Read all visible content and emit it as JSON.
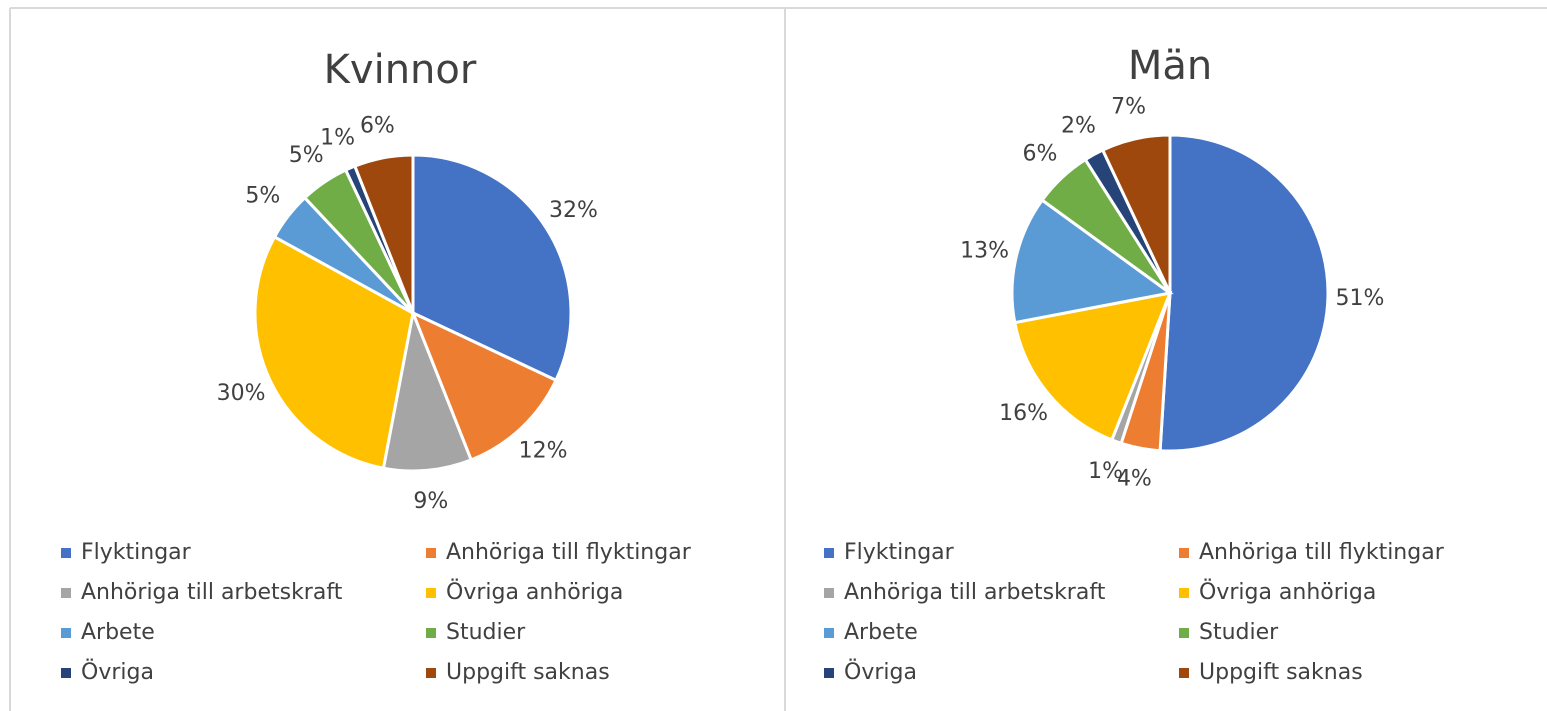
{
  "chart_data": [
    {
      "type": "pie",
      "title": "Kvinnor",
      "categories": [
        "Flyktingar",
        "Anhöriga till flyktingar",
        "Anhöriga till arbetskraft",
        "Övriga anhöriga",
        "Arbete",
        "Studier",
        "Övriga",
        "Uppgift saknas"
      ],
      "values": [
        32,
        12,
        9,
        30,
        5,
        5,
        1,
        6
      ],
      "value_labels": [
        "32%",
        "12%",
        "9%",
        "30%",
        "5%",
        "5%",
        "1%",
        "6%"
      ],
      "colors": [
        "#4472c4",
        "#ed7d31",
        "#a5a5a5",
        "#ffc000",
        "#5b9bd5",
        "#70ad47",
        "#264478",
        "#9e480e"
      ]
    },
    {
      "type": "pie",
      "title": "Män",
      "categories": [
        "Flyktingar",
        "Anhöriga till flyktingar",
        "Anhöriga till arbetskraft",
        "Övriga anhöriga",
        "Arbete",
        "Studier",
        "Övriga",
        "Uppgift saknas"
      ],
      "values": [
        51,
        4,
        1,
        16,
        13,
        6,
        2,
        7
      ],
      "value_labels": [
        "51%",
        "4%",
        "1%",
        "16%",
        "13%",
        "6%",
        "2%",
        "7%"
      ],
      "colors": [
        "#4472c4",
        "#ed7d31",
        "#a5a5a5",
        "#ffc000",
        "#5b9bd5",
        "#70ad47",
        "#264478",
        "#9e480e"
      ]
    }
  ]
}
